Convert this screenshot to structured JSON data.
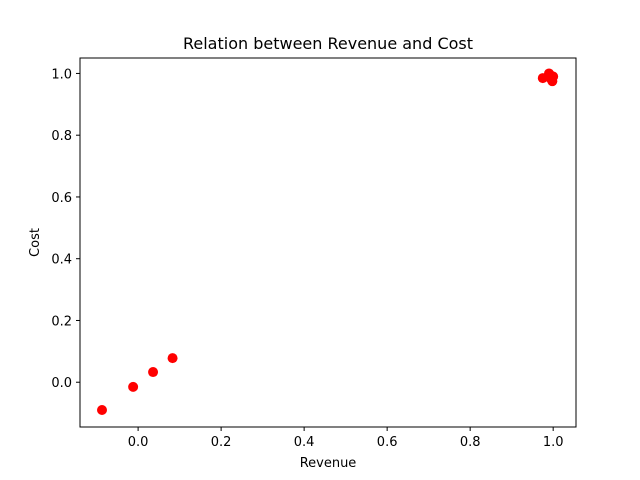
{
  "chart_data": {
    "type": "scatter",
    "title": "Relation between Revenue and Cost",
    "xlabel": "Revenue",
    "ylabel": "Cost",
    "xlim": [
      -0.14,
      1.055
    ],
    "ylim": [
      -0.145,
      1.05
    ],
    "xticks": [
      0.0,
      0.2,
      0.4,
      0.6,
      0.8,
      1.0
    ],
    "yticks": [
      0.0,
      0.2,
      0.4,
      0.6,
      0.8,
      1.0
    ],
    "xtick_labels": [
      "0.0",
      "0.2",
      "0.4",
      "0.6",
      "0.8",
      "1.0"
    ],
    "ytick_labels": [
      "0.0",
      "0.2",
      "0.4",
      "0.6",
      "0.8",
      "1.0"
    ],
    "grid": false,
    "marker_color": "#ff0000",
    "series": [
      {
        "x": [
          -0.087,
          -0.012,
          0.036,
          0.083,
          0.975,
          0.99,
          1.0,
          0.998,
          0.995,
          0.993
        ],
        "y": [
          -0.09,
          -0.015,
          0.033,
          0.078,
          0.985,
          1.0,
          0.99,
          0.975,
          0.982,
          0.995
        ]
      }
    ]
  }
}
